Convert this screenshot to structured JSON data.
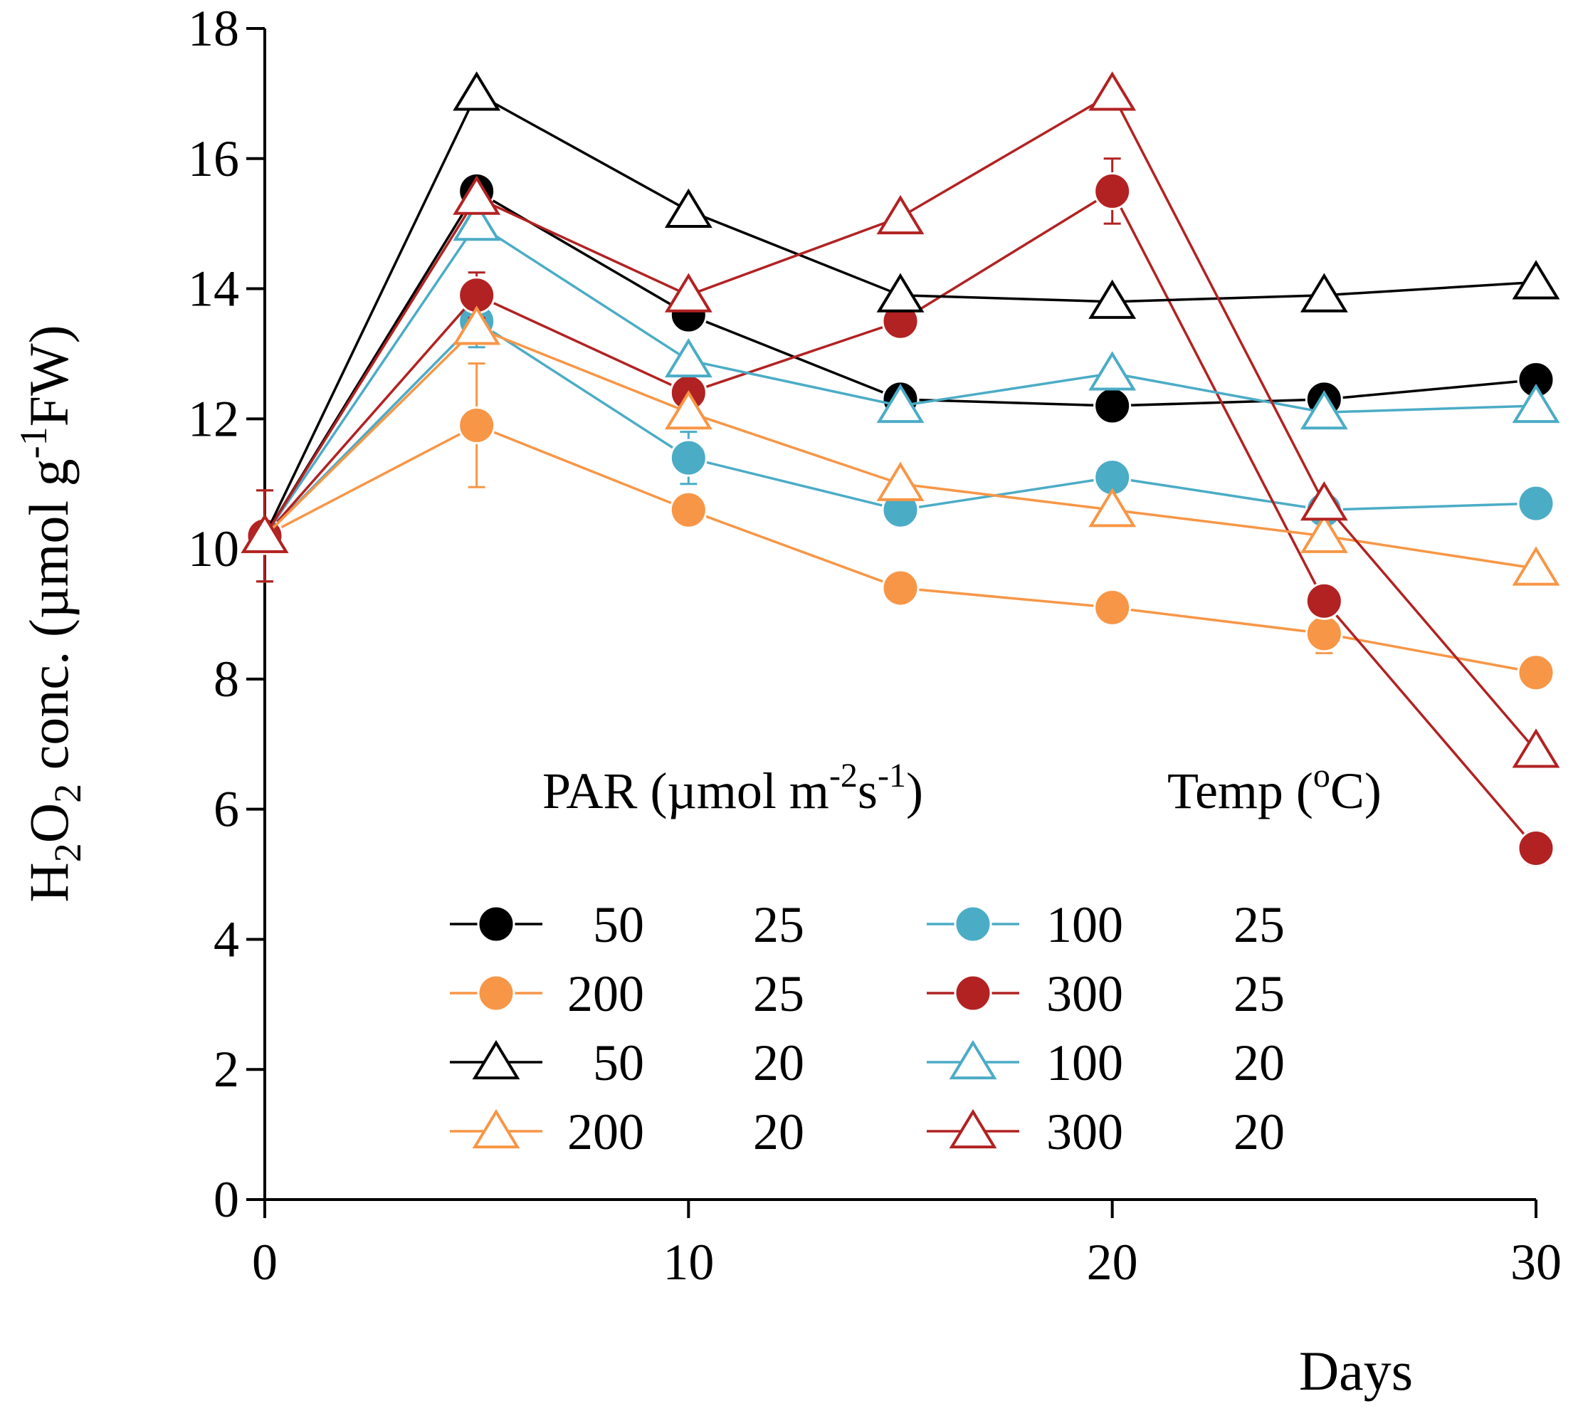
{
  "chart_data": {
    "type": "line",
    "xlabel": "Days",
    "ylabel": "H2O2 conc. (µmol g-1FW)",
    "ylabel_parts": {
      "a": "H",
      "b": "2",
      "c": "O",
      "d": "2",
      "e": " conc. (µmol g",
      "f": "-1",
      "g": "FW)"
    },
    "xlim": [
      0,
      30
    ],
    "ylim": [
      0,
      18
    ],
    "x_ticks": [
      "0",
      "10",
      "20",
      "30"
    ],
    "y_ticks": [
      "0",
      "2",
      "4",
      "6",
      "8",
      "10",
      "12",
      "14",
      "16",
      "18"
    ],
    "x": [
      0,
      5,
      10,
      15,
      20,
      25,
      30
    ],
    "legend": {
      "par_header": "PAR (µmol m-2s-1)",
      "par_parts": {
        "a": "PAR (µmol m",
        "b": "-2",
        "c": "s",
        "d": "-1",
        "e": ")"
      },
      "temp_header": "Temp (oC)",
      "temp_parts": {
        "a": "Temp (",
        "b": "o",
        "c": "C)"
      }
    },
    "series": [
      {
        "name": "50 / 25",
        "par": "50",
        "temp": "25",
        "marker": "circle",
        "color": "#000000",
        "values": [
          10.2,
          15.5,
          13.6,
          12.3,
          12.2,
          12.3,
          12.6
        ],
        "errors": [
          0.7,
          0.15,
          0.1,
          0.1,
          0.1,
          0.1,
          0.1
        ]
      },
      {
        "name": "100 / 25",
        "par": "100",
        "temp": "25",
        "marker": "circle",
        "color": "#4bacc6",
        "values": [
          10.2,
          13.5,
          11.4,
          10.6,
          11.1,
          10.6,
          10.7
        ],
        "errors": [
          0.7,
          0.4,
          0.4,
          0.2,
          0.1,
          0.1,
          0.1
        ]
      },
      {
        "name": "200 / 25",
        "par": "200",
        "temp": "25",
        "marker": "circle",
        "color": "#f79646",
        "values": [
          10.2,
          11.9,
          10.6,
          9.4,
          9.1,
          8.7,
          8.1
        ],
        "errors": [
          0.7,
          0.95,
          0.1,
          0.1,
          0.1,
          0.3,
          0.1
        ]
      },
      {
        "name": "300 / 25",
        "par": "300",
        "temp": "25",
        "marker": "circle",
        "color": "#b22222",
        "values": [
          10.2,
          13.9,
          12.4,
          13.5,
          15.5,
          9.2,
          5.4
        ],
        "errors": [
          0.7,
          0.35,
          0.5,
          0.2,
          0.5,
          0.1,
          0.25
        ]
      },
      {
        "name": "50 / 20",
        "par": "50",
        "temp": "20",
        "marker": "triangle",
        "color": "#000000",
        "values": [
          10.2,
          17.0,
          15.2,
          13.9,
          13.8,
          13.9,
          14.1
        ],
        "errors": [
          0,
          0,
          0,
          0,
          0,
          0,
          0
        ]
      },
      {
        "name": "100 / 20",
        "par": "100",
        "temp": "20",
        "marker": "triangle",
        "color": "#4bacc6",
        "values": [
          10.2,
          15.0,
          12.9,
          12.2,
          12.7,
          12.1,
          12.2
        ],
        "errors": [
          0,
          0,
          0,
          0,
          0,
          0,
          0
        ]
      },
      {
        "name": "200 / 20",
        "par": "200",
        "temp": "20",
        "marker": "triangle",
        "color": "#f79646",
        "values": [
          10.2,
          13.4,
          12.1,
          11.0,
          10.6,
          10.2,
          9.7
        ],
        "errors": [
          0,
          0,
          0,
          0,
          0,
          0,
          0
        ]
      },
      {
        "name": "300 / 20",
        "par": "300",
        "temp": "20",
        "marker": "triangle",
        "color": "#b22222",
        "values": [
          10.2,
          15.4,
          13.9,
          15.1,
          17.0,
          10.7,
          6.9
        ],
        "errors": [
          0,
          0,
          0,
          0,
          0,
          0,
          0
        ]
      }
    ]
  }
}
